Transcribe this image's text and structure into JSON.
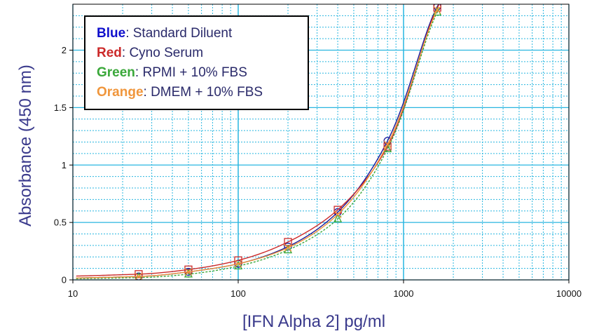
{
  "chart_data": {
    "type": "line",
    "title": "",
    "xlabel": "[IFN Alpha 2] pg/ml",
    "ylabel": "Absorbance (450 nm)",
    "x_scale": "log",
    "xlim": [
      10,
      10000
    ],
    "ylim": [
      0,
      2.4
    ],
    "x_ticks": [
      10,
      100,
      1000,
      10000
    ],
    "x_tick_labels": [
      "10",
      "100",
      "1000",
      "10000"
    ],
    "y_ticks": [
      0,
      0.5,
      1,
      1.5,
      2
    ],
    "y_tick_labels": [
      "0",
      "0.5",
      "1",
      "1.5",
      "2"
    ],
    "grid": true,
    "grid_color": "#29b6e0",
    "legend_position": "top-left",
    "legend": [
      {
        "key": "Blue",
        "rest": ": Standard Diluent",
        "color": "#1010cc"
      },
      {
        "key": "Red",
        "rest": ": Cyno Serum",
        "color": "#cc2a2a"
      },
      {
        "key": "Green",
        "rest": ": RPMI + 10% FBS",
        "color": "#3aa83a"
      },
      {
        "key": "Orange",
        "rest": ": DMEM + 10% FBS",
        "color": "#f0963c"
      }
    ],
    "series": [
      {
        "color": "#1a1a9a",
        "marker": "circle",
        "x": [
          25,
          50,
          100,
          200,
          400,
          800,
          1600
        ],
        "y": [
          0.03,
          0.07,
          0.14,
          0.29,
          0.59,
          1.21,
          2.38
        ]
      },
      {
        "color": "#cc2a2a",
        "marker": "square",
        "x": [
          25,
          50,
          100,
          200,
          400,
          800,
          1600
        ],
        "y": [
          0.05,
          0.09,
          0.17,
          0.33,
          0.61,
          1.16,
          2.37
        ]
      },
      {
        "color": "#3aa83a",
        "marker": "triangle",
        "x": [
          25,
          50,
          100,
          200,
          400,
          800,
          1600
        ],
        "y": [
          0.02,
          0.05,
          0.12,
          0.26,
          0.53,
          1.14,
          2.33
        ]
      },
      {
        "color": "#f0963c",
        "marker": "cross",
        "x": [
          25,
          50,
          100,
          200,
          400,
          800,
          1600
        ],
        "y": [
          0.03,
          0.07,
          0.14,
          0.28,
          0.57,
          1.18,
          2.35
        ]
      }
    ]
  }
}
